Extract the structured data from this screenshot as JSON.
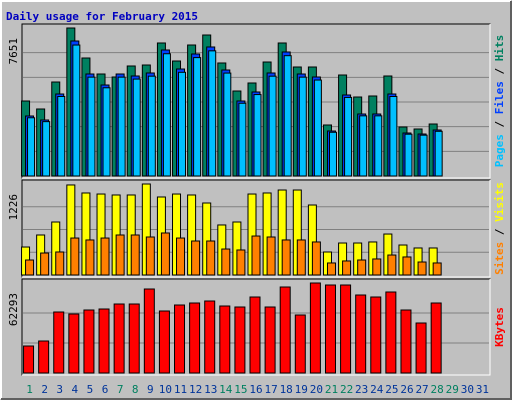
{
  "chart_data": [
    {
      "type": "bar",
      "title": "Daily usage for February 2015",
      "ylim": [
        0,
        7651
      ],
      "yticks": [
        7651
      ],
      "grid_lines": 6,
      "series": [
        {
          "name": "Hits",
          "color": "#008060",
          "values": [
            3877,
            3464,
            4859,
            7651,
            6100,
            5273,
            5118,
            5687,
            5738,
            6876,
            5945,
            6772,
            7289,
            5842,
            4394,
            4808,
            5893,
            6876,
            5635,
            5635,
            2637,
            5221,
            4084,
            4136,
            5170,
            2533,
            2430,
            2688,
            null,
            null,
            null
          ]
        },
        {
          "name": "Files",
          "color": "#0040ff",
          "values": [
            3102,
            2895,
            4239,
            6979,
            5273,
            4704,
            5273,
            5170,
            5325,
            6514,
            5531,
            6307,
            6669,
            5480,
            3877,
            4343,
            5325,
            6410,
            5273,
            5118,
            2326,
            4188,
            3205,
            3205,
            4239,
            2223,
            2171,
            2378,
            null,
            null,
            null
          ]
        },
        {
          "name": "Pages",
          "color": "#00c0ff",
          "values": [
            3010,
            2810,
            4110,
            6770,
            5110,
            4560,
            5110,
            5010,
            5160,
            6320,
            5360,
            6120,
            6470,
            5320,
            3760,
            4210,
            5160,
            6220,
            5110,
            4960,
            2260,
            4060,
            3110,
            3110,
            4110,
            2160,
            2110,
            2310,
            null,
            null,
            null
          ]
        }
      ]
    },
    {
      "type": "bar",
      "ylim": [
        0,
        1226
      ],
      "yticks": [
        1226
      ],
      "grid_lines": 4,
      "series": [
        {
          "name": "Visits",
          "color": "#ffff00",
          "values": [
            377,
            539,
            714,
            1213,
            1105,
            1091,
            1078,
            1078,
            1226,
            1051,
            1091,
            1078,
            970,
            674,
            714,
            1091,
            1105,
            1145,
            1145,
            943,
            310,
            431,
            431,
            445,
            552,
            404,
            364,
            364,
            null,
            null,
            null
          ]
        },
        {
          "name": "Sites",
          "color": "#ff8000",
          "values": [
            202,
            296,
            310,
            498,
            472,
            498,
            539,
            539,
            512,
            566,
            498,
            458,
            458,
            350,
            337,
            525,
            512,
            472,
            472,
            445,
            162,
            189,
            202,
            216,
            269,
            243,
            175,
            162,
            null,
            null,
            null
          ]
        }
      ]
    },
    {
      "type": "bar",
      "ylim": [
        0,
        62293
      ],
      "yticks": [
        62293
      ],
      "grid_lines": 3,
      "categories": [
        "1",
        "2",
        "3",
        "4",
        "5",
        "6",
        "7",
        "8",
        "9",
        "10",
        "11",
        "12",
        "13",
        "14",
        "15",
        "16",
        "17",
        "18",
        "19",
        "20",
        "21",
        "22",
        "23",
        "24",
        "25",
        "26",
        "27",
        "28",
        "29",
        "30",
        "31"
      ],
      "category_colors": [
        "#008060",
        "#00349a",
        "#00349a",
        "#00349a",
        "#00349a",
        "#00349a",
        "#008060",
        "#008060",
        "#00349a",
        "#00349a",
        "#00349a",
        "#00349a",
        "#00349a",
        "#008060",
        "#008060",
        "#00349a",
        "#00349a",
        "#00349a",
        "#00349a",
        "#00349a",
        "#008060",
        "#008060",
        "#00349a",
        "#00349a",
        "#00349a",
        "#00349a",
        "#00349a",
        "#008060",
        "#008060",
        "#00349a",
        "#00349a"
      ],
      "series": [
        {
          "name": "KBytes",
          "color": "#ff0000",
          "values": [
            18688,
            22149,
            42221,
            40837,
            43605,
            44297,
            47758,
            47758,
            58140,
            42913,
            47066,
            48450,
            49834,
            46374,
            45682,
            52603,
            45682,
            59525,
            40144,
            62293,
            60909,
            60909,
            53987,
            52603,
            56064,
            43605,
            34607,
            48450,
            null,
            null,
            null
          ]
        }
      ]
    }
  ]
}
